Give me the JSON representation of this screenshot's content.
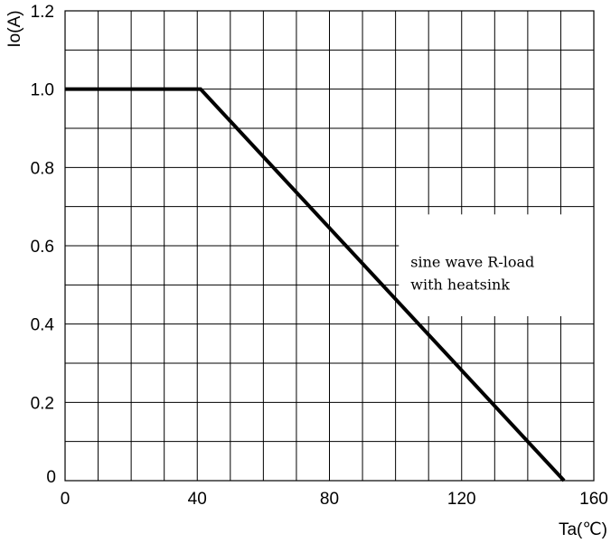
{
  "chart_data": {
    "type": "line",
    "title": "",
    "xlabel": "Ta(℃)",
    "ylabel": "Io(A)",
    "xlim": [
      0,
      160
    ],
    "ylim": [
      0,
      1.2
    ],
    "x_ticks": [
      {
        "value": 0,
        "label": "0"
      },
      {
        "value": 40,
        "label": "40"
      },
      {
        "value": 80,
        "label": "80"
      },
      {
        "value": 120,
        "label": "120"
      },
      {
        "value": 160,
        "label": "160"
      }
    ],
    "y_ticks": [
      {
        "value": 0,
        "label": "0"
      },
      {
        "value": 0.2,
        "label": "0.2"
      },
      {
        "value": 0.4,
        "label": "0.4"
      },
      {
        "value": 0.6,
        "label": "0.6"
      },
      {
        "value": 0.8,
        "label": "0.8"
      },
      {
        "value": 1.0,
        "label": "1.0"
      },
      {
        "value": 1.2,
        "label": "1.2"
      }
    ],
    "grid": true,
    "grid_x_step": 10,
    "grid_y_step": 0.1,
    "series": [
      {
        "x": [
          0,
          41,
          151
        ],
        "y": [
          1.0,
          1.0,
          0
        ]
      }
    ],
    "annotation": {
      "lines": [
        "sine wave R-load",
        "with heatsink"
      ],
      "x_range": [
        101,
        160
      ],
      "y_range": [
        0.42,
        0.68
      ]
    },
    "colors": {
      "line": "#000000",
      "grid": "#000000",
      "background": "#ffffff"
    }
  }
}
